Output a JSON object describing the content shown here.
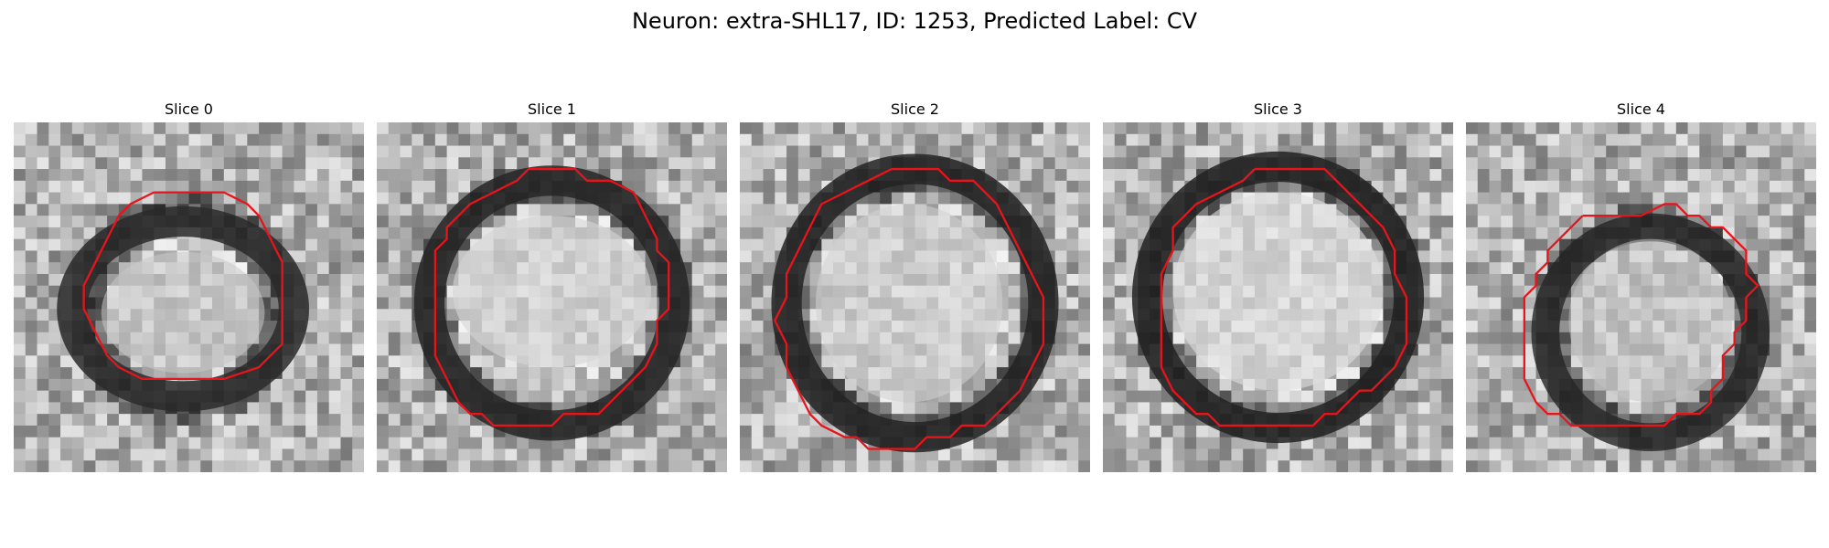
{
  "title": "Neuron: extra-SHL17, ID: 1253, Predicted Label: CV",
  "panels": [
    {
      "label": "Slice 0"
    },
    {
      "label": "Slice 1"
    },
    {
      "label": "Slice 2"
    },
    {
      "label": "Slice 3"
    },
    {
      "label": "Slice 4"
    }
  ],
  "colors": {
    "contour": "#e8141b",
    "background": "#ffffff"
  }
}
